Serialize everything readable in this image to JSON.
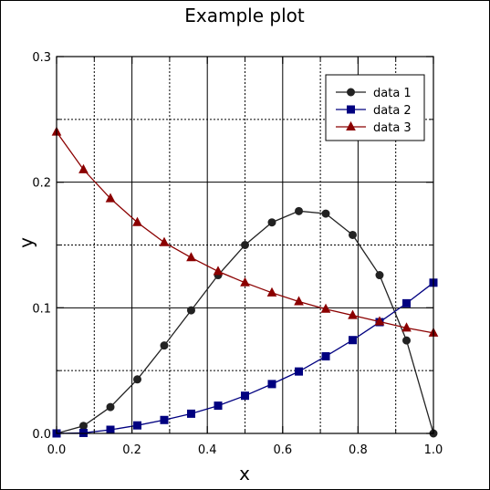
{
  "chart_data": {
    "type": "line",
    "title": "Example plot",
    "xlabel": "x",
    "ylabel": "y",
    "xlim": [
      0,
      1
    ],
    "ylim": [
      0,
      0.3
    ],
    "x_ticks": [
      0.0,
      0.2,
      0.4,
      0.6,
      0.8,
      1.0
    ],
    "x_tick_labels": [
      "0.0",
      "0.2",
      "0.4",
      "0.6",
      "0.8",
      "1.0"
    ],
    "y_ticks": [
      0.0,
      0.1,
      0.2,
      0.3
    ],
    "y_tick_labels": [
      "0.0",
      "0.1",
      "0.2",
      "0.3"
    ],
    "grid": true,
    "legend_position": "top-right",
    "x": [
      0,
      0.0714,
      0.1429,
      0.2143,
      0.2857,
      0.3571,
      0.4286,
      0.5,
      0.5714,
      0.6429,
      0.7143,
      0.7857,
      0.8571,
      0.9286,
      1.0
    ],
    "series": [
      {
        "name": "data 1",
        "color": "#222222",
        "marker": "circle",
        "values": [
          0.0,
          0.006,
          0.021,
          0.043,
          0.07,
          0.098,
          0.126,
          0.15,
          0.168,
          0.177,
          0.175,
          0.158,
          0.126,
          0.074,
          0.0
        ]
      },
      {
        "name": "data 2",
        "color": "#000080",
        "marker": "square",
        "values": [
          0.0,
          0.0004,
          0.0029,
          0.0064,
          0.0107,
          0.0157,
          0.0221,
          0.03,
          0.0393,
          0.0493,
          0.0614,
          0.0743,
          0.0886,
          0.1036,
          0.12
        ]
      },
      {
        "name": "data 3",
        "color": "#8b0000",
        "marker": "triangle",
        "values": [
          0.24,
          0.21,
          0.187,
          0.168,
          0.152,
          0.14,
          0.129,
          0.12,
          0.112,
          0.105,
          0.099,
          0.094,
          0.089,
          0.084,
          0.08
        ]
      }
    ]
  }
}
